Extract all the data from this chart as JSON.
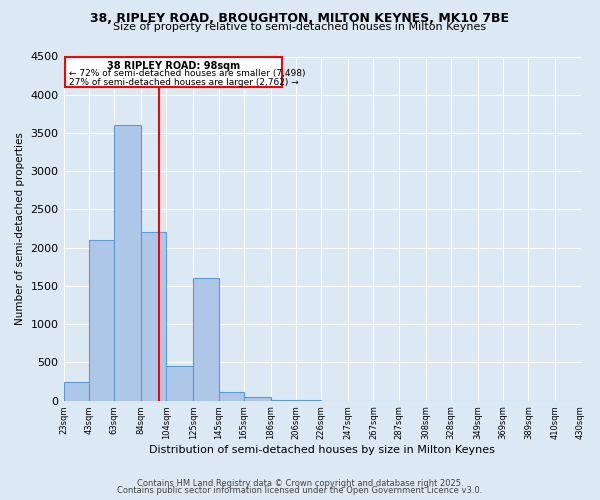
{
  "title_line1": "38, RIPLEY ROAD, BROUGHTON, MILTON KEYNES, MK10 7BE",
  "title_line2": "Size of property relative to semi-detached houses in Milton Keynes",
  "xlabel": "Distribution of semi-detached houses by size in Milton Keynes",
  "ylabel": "Number of semi-detached properties",
  "property_label": "38 RIPLEY ROAD: 98sqm",
  "annotation_line1": "← 72% of semi-detached houses are smaller (7,498)",
  "annotation_line2": "27% of semi-detached houses are larger (2,762) →",
  "property_size_sqm": 98,
  "bar_left_edges": [
    23,
    43,
    63,
    84,
    104,
    125,
    145,
    165,
    186,
    206,
    226,
    247,
    267,
    287,
    308,
    328,
    349,
    369,
    389,
    410
  ],
  "bar_widths": [
    20,
    20,
    21,
    20,
    21,
    20,
    20,
    21,
    20,
    20,
    21,
    20,
    20,
    21,
    20,
    21,
    20,
    20,
    21,
    20
  ],
  "bar_heights": [
    250,
    2100,
    3600,
    2200,
    450,
    1600,
    120,
    50,
    10,
    5,
    2,
    1,
    0,
    0,
    0,
    0,
    0,
    0,
    0,
    0
  ],
  "bar_color": "#aec7e8",
  "bar_edgecolor": "#5b9bd5",
  "vline_color": "red",
  "vline_x": 98,
  "annotation_box_color": "red",
  "ylim": [
    0,
    4500
  ],
  "xlim": [
    23,
    430
  ],
  "tick_labels": [
    "23sqm",
    "43sqm",
    "63sqm",
    "84sqm",
    "104sqm",
    "125sqm",
    "145sqm",
    "165sqm",
    "186sqm",
    "206sqm",
    "226sqm",
    "247sqm",
    "267sqm",
    "287sqm",
    "308sqm",
    "328sqm",
    "349sqm",
    "369sqm",
    "389sqm",
    "410sqm",
    "430sqm"
  ],
  "tick_positions": [
    23,
    43,
    63,
    84,
    104,
    125,
    145,
    165,
    186,
    206,
    226,
    247,
    267,
    287,
    308,
    328,
    349,
    369,
    389,
    410,
    430
  ],
  "footer_line1": "Contains HM Land Registry data © Crown copyright and database right 2025.",
  "footer_line2": "Contains public sector information licensed under the Open Government Licence v3.0.",
  "background_color": "#dce9f5",
  "plot_bg_color": "#dce9f5"
}
